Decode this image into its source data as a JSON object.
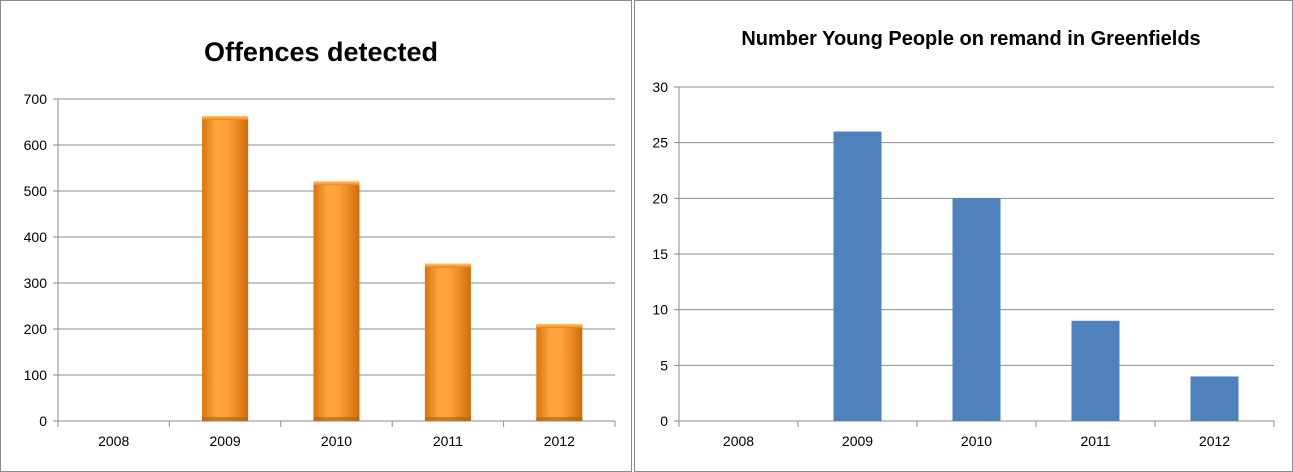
{
  "chart_data": [
    {
      "type": "bar",
      "title": "Offences detected",
      "categories": [
        "2008",
        "2009",
        "2010",
        "2011",
        "2012"
      ],
      "values": [
        0,
        663,
        521,
        342,
        211
      ],
      "ylim": [
        0,
        700
      ],
      "yticks": [
        0,
        100,
        200,
        300,
        400,
        500,
        600,
        700
      ],
      "xlabel": "",
      "ylabel": "",
      "grid": true,
      "legend": "none",
      "bar_color": "#f7941d",
      "bar_style": "gradient"
    },
    {
      "type": "bar",
      "title": "Number Young People on remand in Greenfields",
      "categories": [
        "2008",
        "2009",
        "2010",
        "2011",
        "2012"
      ],
      "values": [
        0,
        26,
        20,
        9,
        4
      ],
      "ylim": [
        0,
        30
      ],
      "yticks": [
        0,
        5,
        10,
        15,
        20,
        25,
        30
      ],
      "xlabel": "",
      "ylabel": "",
      "grid": true,
      "legend": "none",
      "bar_color": "#4f81bd",
      "bar_style": "flat"
    }
  ]
}
